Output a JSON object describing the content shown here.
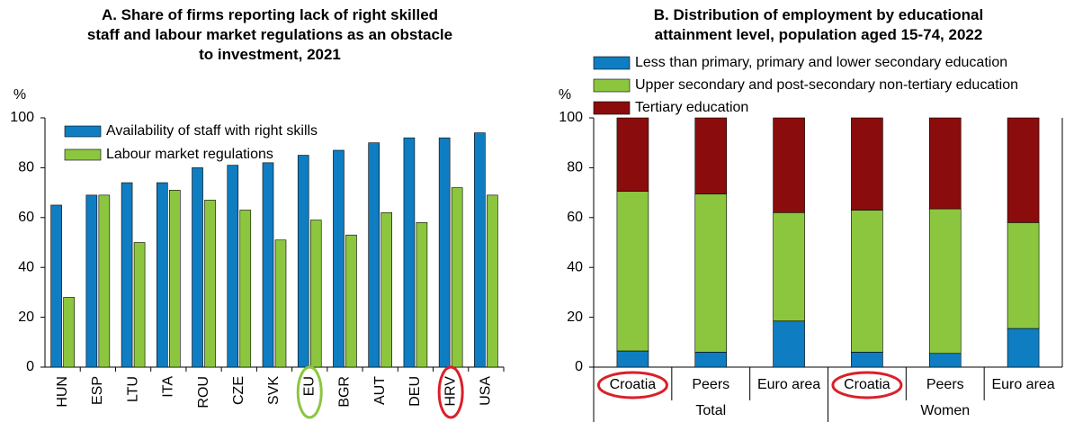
{
  "chart_data": [
    {
      "type": "bar",
      "title": "A. Share of firms reporting lack of right skilled\nstaff and labour market regulations as an obstacle\nto investment, 2021",
      "ylabel": "%",
      "categories": [
        "HUN",
        "ESP",
        "LTU",
        "ITA",
        "ROU",
        "CZE",
        "SVK",
        "EU",
        "BGR",
        "AUT",
        "DEU",
        "HRV",
        "USA"
      ],
      "series": [
        {
          "name": "Availability of staff with right skills",
          "color": "#0f7dc1",
          "values": [
            65,
            69,
            74,
            74,
            80,
            81,
            82,
            85,
            87,
            90,
            92,
            92,
            94
          ]
        },
        {
          "name": "Labour market regulations",
          "color": "#8cc63f",
          "values": [
            28,
            69,
            50,
            71,
            67,
            63,
            51,
            59,
            53,
            62,
            58,
            72,
            69
          ]
        }
      ],
      "ylim": [
        0,
        100
      ],
      "yticks": [
        0,
        20,
        40,
        60,
        80,
        100
      ],
      "grid": false,
      "legend": "top-left"
    },
    {
      "type": "stacked_bar",
      "title": "B. Distribution of employment by educational\nattainment level, population aged 15-74, 2022",
      "ylabel": "%",
      "categories": [
        "Croatia",
        "Peers",
        "Euro area",
        "Croatia",
        "Peers",
        "Euro area"
      ],
      "groups": [
        "Total",
        "Women"
      ],
      "series": [
        {
          "name": "Less than primary, primary and lower secondary education",
          "color": "#0f7dc1",
          "values": [
            6.5,
            6,
            18.5,
            6,
            5.5,
            15.5
          ]
        },
        {
          "name": "Upper secondary and post-secondary non-tertiary education",
          "color": "#8cc63f",
          "values": [
            64,
            63.5,
            43.5,
            57,
            58,
            42.5
          ]
        },
        {
          "name": "Tertiary education",
          "color": "#8b0c0c",
          "values": [
            29.5,
            30.5,
            38,
            37,
            36.5,
            42
          ]
        }
      ],
      "ylim": [
        0,
        100
      ],
      "yticks": [
        0,
        20,
        40,
        60,
        80,
        100
      ],
      "grid": false,
      "legend": "top-left"
    }
  ]
}
